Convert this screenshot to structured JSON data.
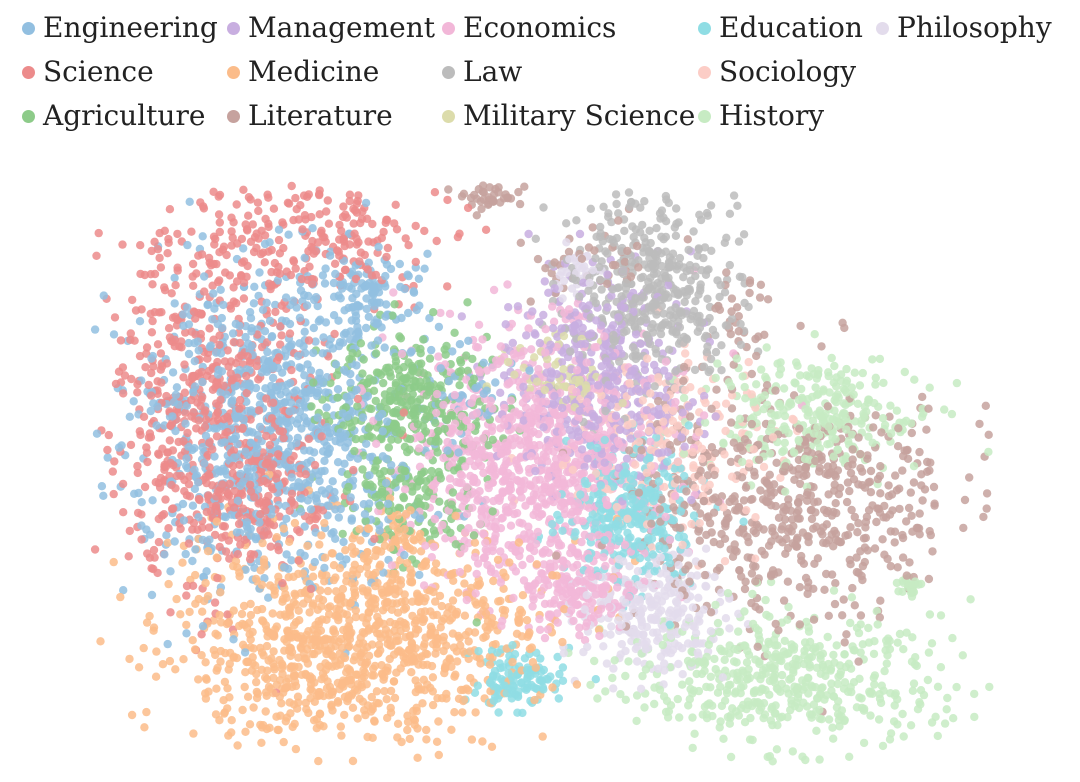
{
  "chart_data": {
    "type": "scatter",
    "title": "",
    "xlabel": "",
    "ylabel": "",
    "axes_visible": false,
    "grid": false,
    "legend_position": "top",
    "legend_columns": 5,
    "series": [
      {
        "name": "Engineering",
        "color": "#92BFE0",
        "clusters": [
          [
            0.2,
            0.42,
            0.08,
            0.13,
            900
          ],
          [
            0.3,
            0.2,
            0.04,
            0.05,
            120
          ],
          [
            0.42,
            0.35,
            0.03,
            0.03,
            30
          ]
        ]
      },
      {
        "name": "Science",
        "color": "#EC8B8B",
        "clusters": [
          [
            0.13,
            0.38,
            0.06,
            0.15,
            600
          ],
          [
            0.24,
            0.09,
            0.08,
            0.05,
            220
          ],
          [
            0.18,
            0.55,
            0.04,
            0.05,
            120
          ]
        ]
      },
      {
        "name": "Agriculture",
        "color": "#8DCB89",
        "clusters": [
          [
            0.35,
            0.37,
            0.045,
            0.06,
            320
          ],
          [
            0.35,
            0.54,
            0.04,
            0.05,
            140
          ]
        ]
      },
      {
        "name": "Management",
        "color": "#C8AEE0",
        "clusters": [
          [
            0.55,
            0.25,
            0.05,
            0.06,
            180
          ],
          [
            0.57,
            0.4,
            0.05,
            0.06,
            220
          ]
        ]
      },
      {
        "name": "Medicine",
        "color": "#FBBC8A",
        "clusters": [
          [
            0.3,
            0.77,
            0.1,
            0.09,
            950
          ],
          [
            0.21,
            0.87,
            0.04,
            0.04,
            90
          ],
          [
            0.33,
            0.6,
            0.02,
            0.03,
            40
          ]
        ]
      },
      {
        "name": "Literature",
        "color": "#C6A29E",
        "clusters": [
          [
            0.44,
            0.01,
            0.02,
            0.02,
            60
          ],
          [
            0.78,
            0.55,
            0.09,
            0.1,
            600
          ],
          [
            0.72,
            0.22,
            0.02,
            0.05,
            30
          ],
          [
            0.55,
            0.12,
            0.05,
            0.04,
            40
          ]
        ]
      },
      {
        "name": "Economics",
        "color": "#F2B7D8",
        "clusters": [
          [
            0.49,
            0.48,
            0.07,
            0.11,
            950
          ],
          [
            0.54,
            0.7,
            0.03,
            0.04,
            140
          ]
        ]
      },
      {
        "name": "Law",
        "color": "#BCBCBC",
        "clusters": [
          [
            0.62,
            0.18,
            0.05,
            0.08,
            450
          ]
        ]
      },
      {
        "name": "Military Science",
        "color": "#DCDCAB",
        "clusters": [
          [
            0.54,
            0.35,
            0.02,
            0.015,
            40
          ],
          [
            0.5,
            0.3,
            0.03,
            0.03,
            30
          ]
        ]
      },
      {
        "name": "Education",
        "color": "#8FDDE4",
        "clusters": [
          [
            0.6,
            0.56,
            0.035,
            0.06,
            330
          ],
          [
            0.47,
            0.85,
            0.025,
            0.025,
            120
          ]
        ]
      },
      {
        "name": "Sociology",
        "color": "#FCCDC6",
        "clusters": [
          [
            0.65,
            0.45,
            0.06,
            0.08,
            220
          ]
        ]
      },
      {
        "name": "History",
        "color": "#C7EBC3",
        "clusters": [
          [
            0.8,
            0.4,
            0.06,
            0.05,
            280
          ],
          [
            0.77,
            0.85,
            0.09,
            0.06,
            500
          ],
          [
            0.91,
            0.69,
            0.005,
            0.01,
            25
          ]
        ]
      },
      {
        "name": "Philosophy",
        "color": "#E3DCEC",
        "clusters": [
          [
            0.62,
            0.74,
            0.04,
            0.05,
            260
          ],
          [
            0.54,
            0.15,
            0.015,
            0.02,
            40
          ]
        ]
      }
    ]
  }
}
